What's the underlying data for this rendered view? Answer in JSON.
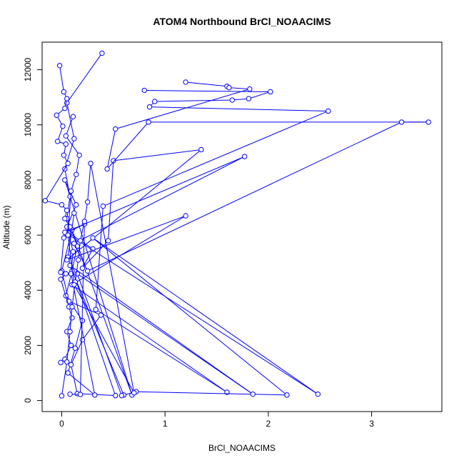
{
  "chart_data": {
    "type": "line",
    "title": "ATOM4 Northbound BrCl_NOAACIMS",
    "xlabel": "BrCl_NOAACIMS",
    "ylabel": "Altitude (m)",
    "xlim": [
      -0.19,
      3.68
    ],
    "ylim": [
      -400,
      13000
    ],
    "x_ticks": [
      0,
      1,
      2,
      3
    ],
    "y_ticks": [
      0,
      2000,
      4000,
      6000,
      8000,
      10000,
      12000
    ],
    "grid": false,
    "legend": "none",
    "marker": "open-circle",
    "color": "#0000ff",
    "series": [
      {
        "x": [
          0.39,
          0.05,
          0.12,
          0.03,
          0.08,
          0.05,
          0.15,
          0.1,
          0.04,
          0.2,
          0.13,
          0.06,
          0.32,
          0.09,
          0.11,
          0.05,
          0.14,
          0.03,
          0.68,
          0.1,
          0.0,
          0.07,
          0.38,
          0.2,
          0.09,
          0.15,
          0.52,
          0.06,
          0.12
        ],
        "y": [
          12600,
          10800,
          9500,
          8400,
          7400,
          6600,
          5600,
          4700,
          3800,
          2900,
          1900,
          1000,
          200,
          4600,
          5400,
          6300,
          7100,
          8000,
          200,
          6200,
          4700,
          3600,
          3100,
          2200,
          1300,
          250,
          180,
          5200,
          6800
        ]
      },
      {
        "x": [
          0.8,
          2.02,
          1.81,
          1.65,
          0.9,
          0.85,
          2.58,
          0.4,
          0.33,
          1.6,
          0.1,
          1.2,
          0.05,
          1.35,
          0.5,
          0.45,
          0.2,
          0.3,
          0.06,
          0.22,
          0.18,
          0.08
        ],
        "y": [
          11250,
          11200,
          10950,
          10900,
          10850,
          10650,
          10500,
          7050,
          3300,
          300,
          4200,
          6700,
          5100,
          9100,
          8700,
          5800,
          4800,
          5500,
          6100,
          6400,
          220,
          230
        ]
      },
      {
        "x": [
          1.2,
          1.6,
          1.62,
          1.82,
          0.52,
          0.44,
          0.84,
          3.55,
          3.29,
          0.25,
          0.12,
          1.77,
          0.03,
          2.48,
          0.3,
          2.18,
          0.72,
          0.6,
          0.08,
          1.85,
          0.15,
          0.58
        ],
        "y": [
          11550,
          11400,
          11350,
          11300,
          9850,
          8400,
          10100,
          10100,
          10100,
          4700,
          5700,
          8850,
          6100,
          230,
          5900,
          200,
          320,
          200,
          4900,
          230,
          4600,
          180
        ]
      },
      {
        "x": [
          -0.02,
          0.02,
          0.05,
          0.03,
          -0.05,
          0.01,
          -0.04,
          0.04,
          0.02,
          0.06,
          -0.16,
          0.0,
          0.05,
          0.03,
          0.08,
          0.02,
          -0.01,
          0.04,
          -0.01,
          0.07,
          0.1,
          0.05,
          0.09,
          0.03,
          -0.01
        ],
        "y": [
          12150,
          11200,
          10950,
          10600,
          10350,
          9950,
          9400,
          9300,
          8900,
          8600,
          7250,
          7100,
          6900,
          6600,
          6300,
          5900,
          4650,
          4600,
          4400,
          3400,
          3000,
          2500,
          2000,
          1500,
          1380
        ]
      },
      {
        "x": [
          0.0,
          0.05,
          0.08,
          0.1,
          0.13,
          0.16,
          0.18,
          0.22,
          0.25,
          0.28,
          0.7,
          0.12,
          0.06,
          0.09,
          0.14,
          0.17,
          0.04,
          0.11
        ],
        "y": [
          170,
          1400,
          2500,
          3400,
          4300,
          5100,
          5800,
          6500,
          7200,
          8600,
          280,
          4200,
          6000,
          7600,
          8200,
          8900,
          9600,
          10300
        ]
      }
    ]
  }
}
